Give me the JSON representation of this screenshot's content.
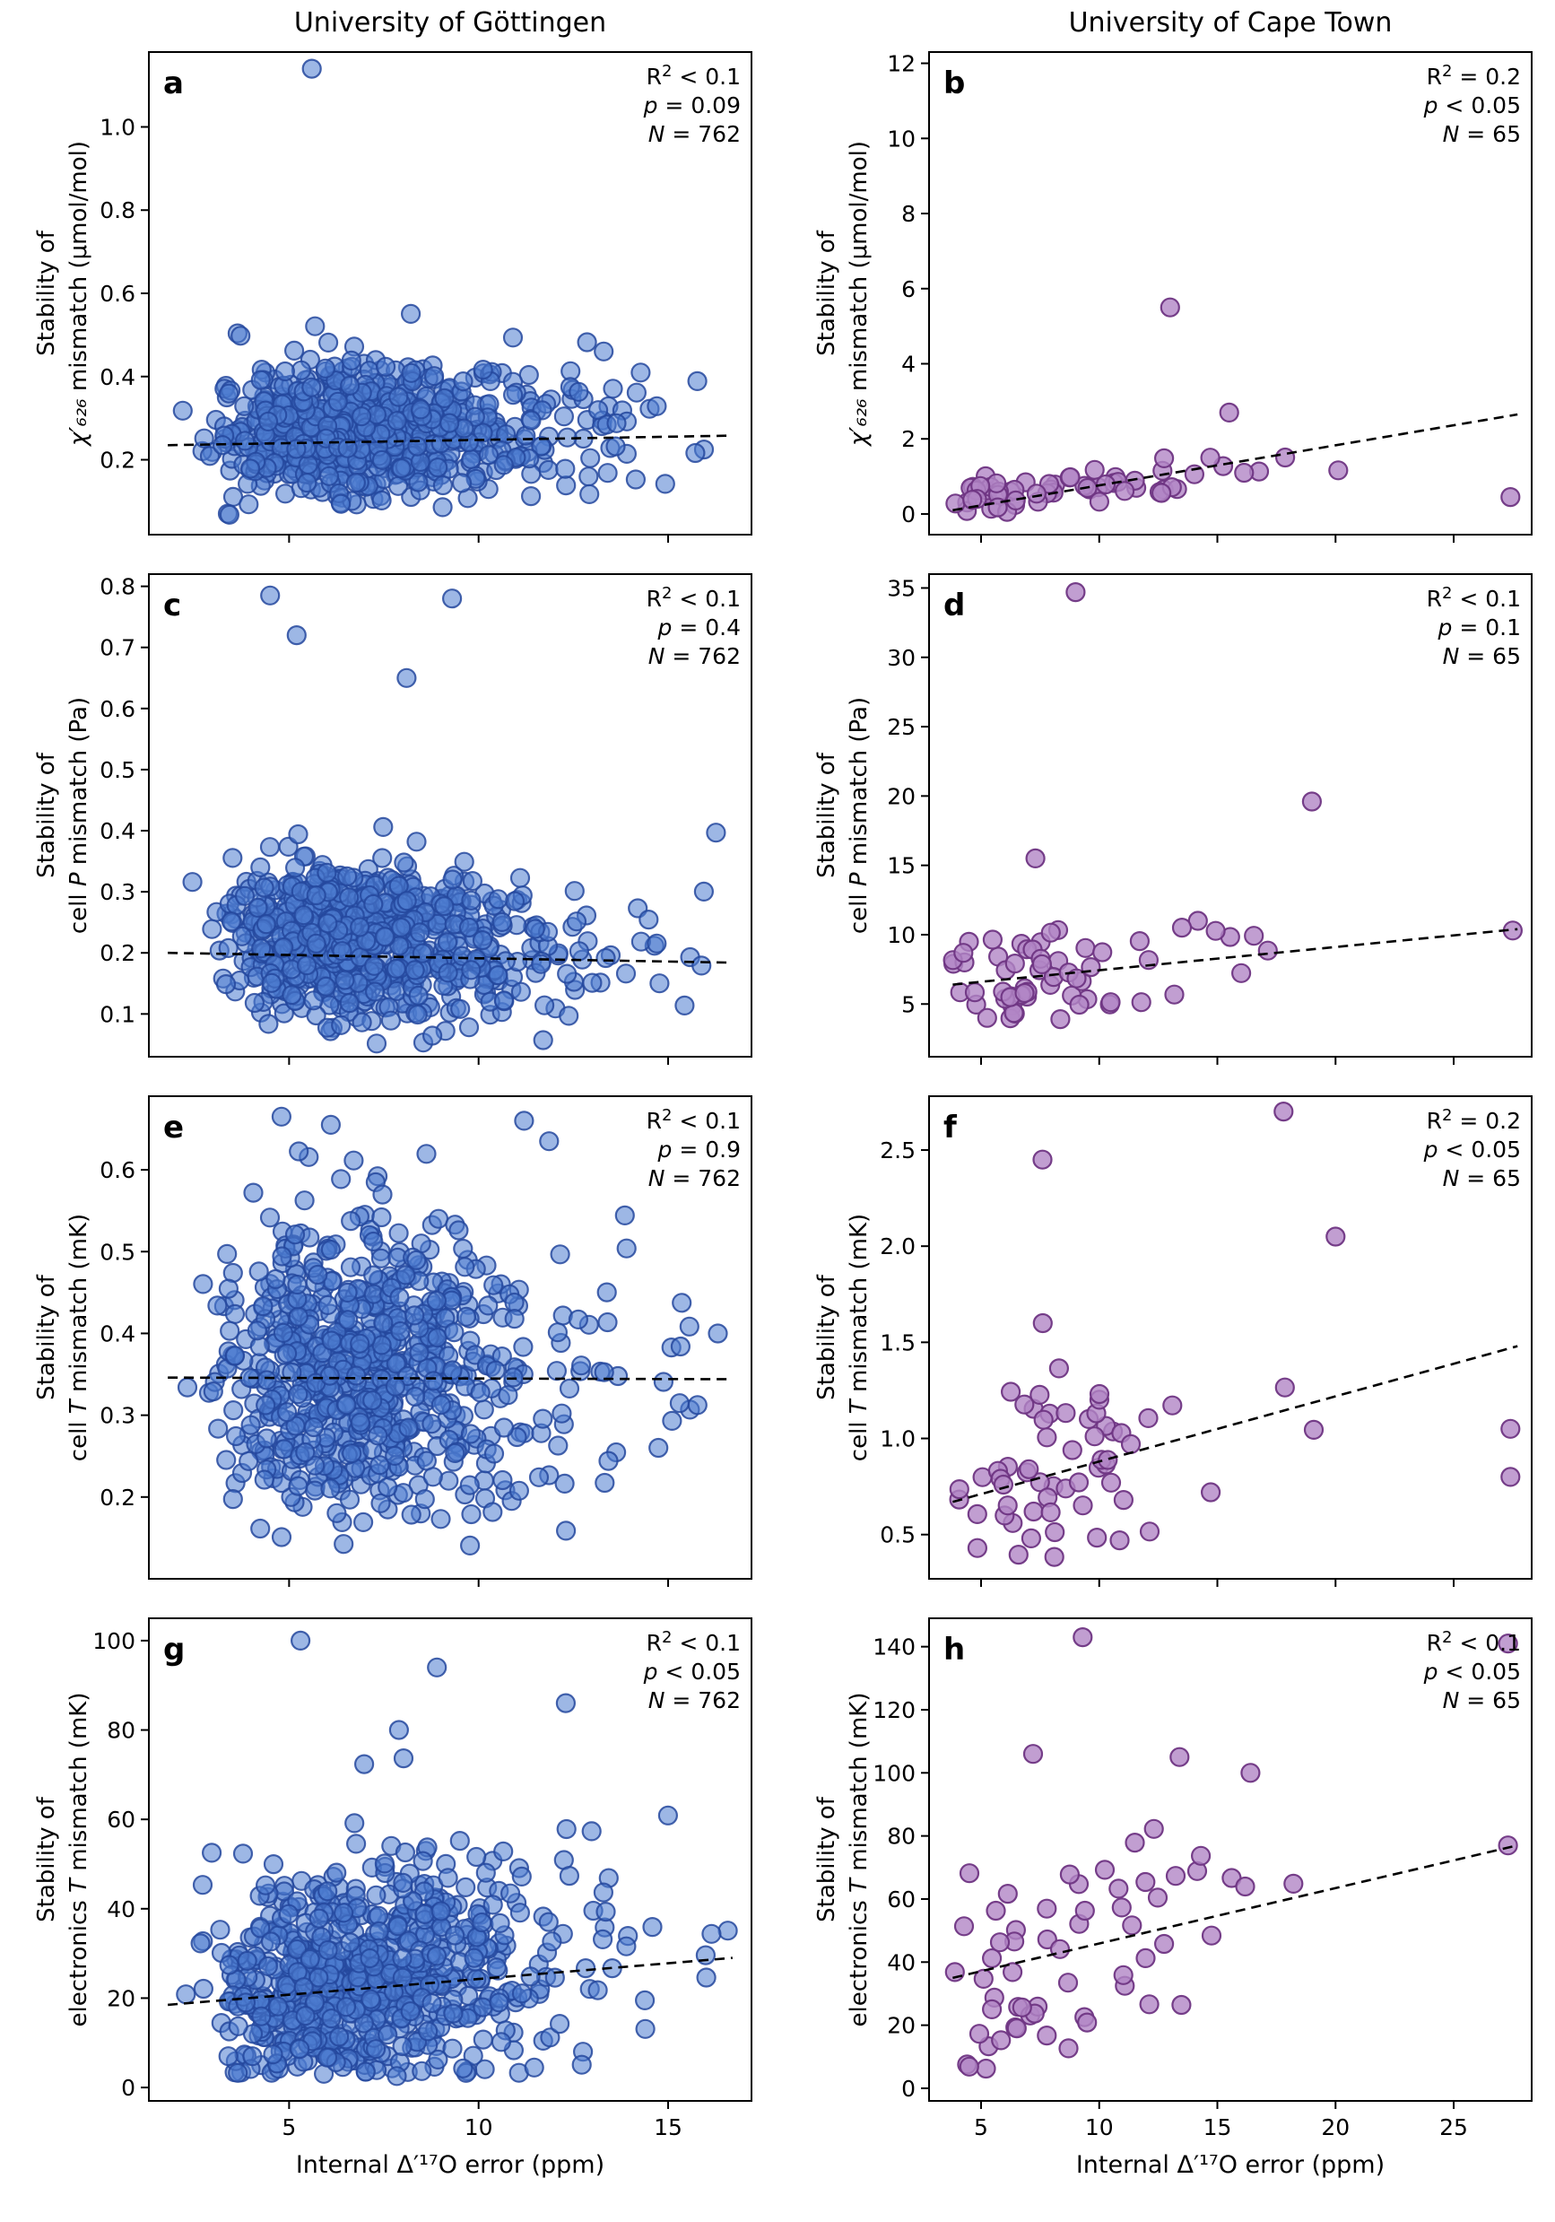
{
  "figure": {
    "columns": [
      {
        "title": "University of Göttingen"
      },
      {
        "title": "University of Cape Town"
      }
    ],
    "xlabel": "Internal Δ′¹⁷O error (ppm)",
    "colors": {
      "gottingen_fill": "#4d7bd0",
      "gottingen_edge": "#24489e",
      "capetown_fill": "#b286c6",
      "capetown_edge": "#6f3583",
      "trend_line": "#000000"
    }
  },
  "chart_data": [
    {
      "letter": "a",
      "type": "scatter",
      "column": 0,
      "title": "University of Göttingen",
      "ylabel": {
        "line1": "Stability of",
        "line2": [
          {
            "t": "χ′₆₂₆",
            "i": true
          },
          {
            "t": " mismatch (μmol/mol)"
          }
        ]
      },
      "stats": {
        "r2": "< 0.1",
        "p": "= 0.09",
        "n": "= 762"
      },
      "xlim": [
        1.3,
        17.2
      ],
      "ylim": [
        0.02,
        1.18
      ],
      "xticks": [
        5,
        10,
        15
      ],
      "xticklabels": [
        "5",
        "10",
        "15"
      ],
      "yticks": [
        0.2,
        0.4,
        0.6,
        0.8,
        1.0
      ],
      "yticklabels": [
        "0.2",
        "0.4",
        "0.6",
        "0.8",
        "1.0"
      ],
      "show_xticklabels": false,
      "style": {
        "fill": "#4d7bd0",
        "edge": "#24489e",
        "fill_opacity": 0.55,
        "edge_opacity": 0.85
      },
      "trend": {
        "x1": 1.8,
        "y1": 0.235,
        "x2": 16.7,
        "y2": 0.258
      },
      "cloud": {
        "seed": 11,
        "n": 761,
        "x_mu": 1.93,
        "x_sigma": 0.33,
        "x_min": 2.0,
        "x_max": 16.6,
        "y_a": 0.22,
        "y_b": 0.0015,
        "noise": 0.072,
        "skew": 0.05,
        "y_min": 0.06,
        "y_max": 0.64
      },
      "outliers": [
        [
          5.6,
          1.14
        ]
      ]
    },
    {
      "letter": "b",
      "type": "scatter",
      "column": 1,
      "title": "University of Cape Town",
      "ylabel": {
        "line1": "Stability of",
        "line2": [
          {
            "t": "χ′₆₂₆",
            "i": true
          },
          {
            "t": " mismatch (μmol/mol)"
          }
        ]
      },
      "stats": {
        "r2": "= 0.2",
        "p": "< 0.05",
        "n": "= 65"
      },
      "xlim": [
        2.8,
        28.3
      ],
      "ylim": [
        -0.55,
        12.3
      ],
      "xticks": [
        5,
        10,
        15,
        20,
        25
      ],
      "xticklabels": [
        "5",
        "10",
        "15",
        "20",
        "25"
      ],
      "yticks": [
        0,
        2,
        4,
        6,
        8,
        10,
        12
      ],
      "yticklabels": [
        "0",
        "2",
        "4",
        "6",
        "8",
        "10",
        "12"
      ],
      "show_xticklabels": false,
      "style": {
        "fill": "#b286c6",
        "edge": "#6f3583",
        "fill_opacity": 0.8,
        "edge_opacity": 0.95
      },
      "trend": {
        "x1": 3.8,
        "y1": 0.1,
        "x2": 27.7,
        "y2": 2.65
      },
      "cloud": {
        "seed": 12,
        "n": 61,
        "x_mu": 2.08,
        "x_sigma": 0.4,
        "x_min": 3.8,
        "x_max": 22.0,
        "y_a": 0.05,
        "y_b": 0.05,
        "noise": 0.22,
        "skew": 0.15,
        "y_min": 0.05,
        "y_max": 1.6
      },
      "outliers": [
        [
          13.0,
          5.5
        ],
        [
          15.5,
          2.7
        ],
        [
          14.7,
          1.5
        ],
        [
          27.4,
          0.45
        ]
      ]
    },
    {
      "letter": "c",
      "type": "scatter",
      "column": 0,
      "title": "University of Göttingen",
      "ylabel": {
        "line1": "Stability of",
        "line2": [
          {
            "t": "cell "
          },
          {
            "t": "P",
            "i": true
          },
          {
            "t": " mismatch (Pa)"
          }
        ]
      },
      "stats": {
        "r2": "< 0.1",
        "p": "= 0.4",
        "n": "= 762"
      },
      "xlim": [
        1.3,
        17.2
      ],
      "ylim": [
        0.03,
        0.82
      ],
      "xticks": [
        5,
        10,
        15
      ],
      "xticklabels": [
        "5",
        "10",
        "15"
      ],
      "yticks": [
        0.1,
        0.2,
        0.3,
        0.4,
        0.5,
        0.6,
        0.7,
        0.8
      ],
      "yticklabels": [
        "0.1",
        "0.2",
        "0.3",
        "0.4",
        "0.5",
        "0.6",
        "0.7",
        "0.8"
      ],
      "show_xticklabels": false,
      "style": {
        "fill": "#4d7bd0",
        "edge": "#24489e",
        "fill_opacity": 0.55,
        "edge_opacity": 0.85
      },
      "trend": {
        "x1": 1.8,
        "y1": 0.2,
        "x2": 16.7,
        "y2": 0.184
      },
      "cloud": {
        "seed": 21,
        "n": 758,
        "x_mu": 1.93,
        "x_sigma": 0.33,
        "x_min": 2.0,
        "x_max": 16.6,
        "y_a": 0.205,
        "y_b": -0.0012,
        "noise": 0.062,
        "skew": 0.035,
        "y_min": 0.05,
        "y_max": 0.42
      },
      "outliers": [
        [
          4.5,
          0.785
        ],
        [
          5.2,
          0.72
        ],
        [
          8.1,
          0.65
        ],
        [
          9.3,
          0.78
        ]
      ]
    },
    {
      "letter": "d",
      "type": "scatter",
      "column": 1,
      "title": "University of Cape Town",
      "ylabel": {
        "line1": "Stability of",
        "line2": [
          {
            "t": "cell "
          },
          {
            "t": "P",
            "i": true
          },
          {
            "t": " mismatch (Pa)"
          }
        ]
      },
      "stats": {
        "r2": "< 0.1",
        "p": "= 0.1",
        "n": "= 65"
      },
      "xlim": [
        2.8,
        28.3
      ],
      "ylim": [
        1.2,
        36
      ],
      "xticks": [
        5,
        10,
        15,
        20,
        25
      ],
      "xticklabels": [
        "5",
        "10",
        "15",
        "20",
        "25"
      ],
      "yticks": [
        5,
        10,
        15,
        20,
        25,
        30,
        35
      ],
      "yticklabels": [
        "5",
        "10",
        "15",
        "20",
        "25",
        "30",
        "35"
      ],
      "show_xticklabels": false,
      "style": {
        "fill": "#b286c6",
        "edge": "#6f3583",
        "fill_opacity": 0.8,
        "edge_opacity": 0.95
      },
      "trend": {
        "x1": 3.8,
        "y1": 6.4,
        "x2": 27.7,
        "y2": 10.4
      },
      "cloud": {
        "seed": 22,
        "n": 61,
        "x_mu": 2.08,
        "x_sigma": 0.4,
        "x_min": 3.8,
        "x_max": 22.0,
        "y_a": 4.8,
        "y_b": 0.13,
        "noise": 1.6,
        "skew": 1.4,
        "y_min": 2.6,
        "y_max": 12.5
      },
      "outliers": [
        [
          9.0,
          34.7
        ],
        [
          19.0,
          19.6
        ],
        [
          7.3,
          15.5
        ],
        [
          27.5,
          10.3
        ]
      ]
    },
    {
      "letter": "e",
      "type": "scatter",
      "column": 0,
      "title": "University of Göttingen",
      "ylabel": {
        "line1": "Stability of",
        "line2": [
          {
            "t": "cell "
          },
          {
            "t": "T",
            "i": true
          },
          {
            "t": " mismatch (mK)"
          }
        ]
      },
      "stats": {
        "r2": "< 0.1",
        "p": "= 0.9",
        "n": "= 762"
      },
      "xlim": [
        1.3,
        17.2
      ],
      "ylim": [
        0.1,
        0.69
      ],
      "xticks": [
        5,
        10,
        15
      ],
      "xticklabels": [
        "5",
        "10",
        "15"
      ],
      "yticks": [
        0.2,
        0.3,
        0.4,
        0.5,
        0.6
      ],
      "yticklabels": [
        "0.2",
        "0.3",
        "0.4",
        "0.5",
        "0.6"
      ],
      "show_xticklabels": false,
      "style": {
        "fill": "#4d7bd0",
        "edge": "#24489e",
        "fill_opacity": 0.55,
        "edge_opacity": 0.85
      },
      "trend": {
        "x1": 1.8,
        "y1": 0.346,
        "x2": 16.7,
        "y2": 0.344
      },
      "cloud": {
        "seed": 31,
        "n": 759,
        "x_mu": 1.93,
        "x_sigma": 0.33,
        "x_min": 2.0,
        "x_max": 16.6,
        "y_a": 0.34,
        "y_b": 0.0,
        "noise": 0.097,
        "skew": 0.02,
        "y_min": 0.14,
        "y_max": 0.64
      },
      "outliers": [
        [
          4.8,
          0.665
        ],
        [
          6.1,
          0.655
        ],
        [
          11.2,
          0.66
        ]
      ]
    },
    {
      "letter": "f",
      "type": "scatter",
      "column": 1,
      "title": "University of Cape Town",
      "ylabel": {
        "line1": "Stability of",
        "line2": [
          {
            "t": "cell "
          },
          {
            "t": "T",
            "i": true
          },
          {
            "t": " mismatch (mK)"
          }
        ]
      },
      "stats": {
        "r2": "= 0.2",
        "p": "< 0.05",
        "n": "= 65"
      },
      "xlim": [
        2.8,
        28.3
      ],
      "ylim": [
        0.27,
        2.78
      ],
      "xticks": [
        5,
        10,
        15,
        20,
        25
      ],
      "xticklabels": [
        "5",
        "10",
        "15",
        "20",
        "25"
      ],
      "yticks": [
        0.5,
        1.0,
        1.5,
        2.0,
        2.5
      ],
      "yticklabels": [
        "0.5",
        "1.0",
        "1.5",
        "2.0",
        "2.5"
      ],
      "show_xticklabels": false,
      "style": {
        "fill": "#b286c6",
        "edge": "#6f3583",
        "fill_opacity": 0.8,
        "edge_opacity": 0.95
      },
      "trend": {
        "x1": 3.8,
        "y1": 0.67,
        "x2": 27.7,
        "y2": 1.48
      },
      "cloud": {
        "seed": 32,
        "n": 60,
        "x_mu": 2.08,
        "x_sigma": 0.4,
        "x_min": 3.8,
        "x_max": 22.0,
        "y_a": 0.45,
        "y_b": 0.033,
        "noise": 0.21,
        "skew": 0.16,
        "y_min": 0.32,
        "y_max": 2.05
      },
      "outliers": [
        [
          17.8,
          2.7
        ],
        [
          7.6,
          2.45
        ],
        [
          20.0,
          2.05
        ],
        [
          27.4,
          1.05
        ],
        [
          27.4,
          0.8
        ]
      ]
    },
    {
      "letter": "g",
      "type": "scatter",
      "column": 0,
      "title": "University of Göttingen",
      "ylabel": {
        "line1": "Stability of",
        "line2": [
          {
            "t": "electronics "
          },
          {
            "t": "T",
            "i": true
          },
          {
            "t": " mismatch (mK)"
          }
        ]
      },
      "stats": {
        "r2": "< 0.1",
        "p": "< 0.05",
        "n": "= 762"
      },
      "xlim": [
        1.3,
        17.2
      ],
      "ylim": [
        -3,
        105
      ],
      "xticks": [
        5,
        10,
        15
      ],
      "xticklabels": [
        "5",
        "10",
        "15"
      ],
      "yticks": [
        0,
        20,
        40,
        60,
        80,
        100
      ],
      "yticklabels": [
        "0",
        "20",
        "40",
        "60",
        "80",
        "100"
      ],
      "show_xticklabels": true,
      "style": {
        "fill": "#4d7bd0",
        "edge": "#24489e",
        "fill_opacity": 0.55,
        "edge_opacity": 0.85
      },
      "trend": {
        "x1": 1.8,
        "y1": 18.5,
        "x2": 16.7,
        "y2": 29.0
      },
      "cloud": {
        "seed": 41,
        "n": 758,
        "x_mu": 1.93,
        "x_sigma": 0.33,
        "x_min": 2.0,
        "x_max": 16.6,
        "y_a": 10.0,
        "y_b": 1.0,
        "noise": 12.0,
        "skew": 9.0,
        "y_min": 2.5,
        "y_max": 92
      },
      "outliers": [
        [
          5.3,
          100
        ],
        [
          8.9,
          94
        ],
        [
          12.3,
          86
        ],
        [
          7.9,
          80
        ]
      ]
    },
    {
      "letter": "h",
      "type": "scatter",
      "column": 1,
      "title": "University of Cape Town",
      "ylabel": {
        "line1": "Stability of",
        "line2": [
          {
            "t": "electronics "
          },
          {
            "t": "T",
            "i": true
          },
          {
            "t": " mismatch (mK)"
          }
        ]
      },
      "stats": {
        "r2": "< 0.1",
        "p": "< 0.05",
        "n": "= 65"
      },
      "xlim": [
        2.8,
        28.3
      ],
      "ylim": [
        -4,
        149
      ],
      "xticks": [
        5,
        10,
        15,
        20,
        25
      ],
      "xticklabels": [
        "5",
        "10",
        "15",
        "20",
        "25"
      ],
      "yticks": [
        0,
        20,
        40,
        60,
        80,
        100,
        120,
        140
      ],
      "yticklabels": [
        "0",
        "20",
        "40",
        "60",
        "80",
        "100",
        "120",
        "140"
      ],
      "show_xticklabels": true,
      "style": {
        "fill": "#b286c6",
        "edge": "#6f3583",
        "fill_opacity": 0.8,
        "edge_opacity": 0.95
      },
      "trend": {
        "x1": 3.8,
        "y1": 35.0,
        "x2": 27.7,
        "y2": 77.0
      },
      "cloud": {
        "seed": 42,
        "n": 59,
        "x_mu": 2.08,
        "x_sigma": 0.4,
        "x_min": 3.8,
        "x_max": 22.0,
        "y_a": 22.0,
        "y_b": 1.8,
        "noise": 19.0,
        "skew": 12.0,
        "y_min": 4.0,
        "y_max": 98
      },
      "outliers": [
        [
          9.3,
          143
        ],
        [
          27.3,
          141
        ],
        [
          7.2,
          106
        ],
        [
          13.4,
          105
        ],
        [
          16.4,
          100
        ],
        [
          27.3,
          77
        ]
      ]
    }
  ]
}
